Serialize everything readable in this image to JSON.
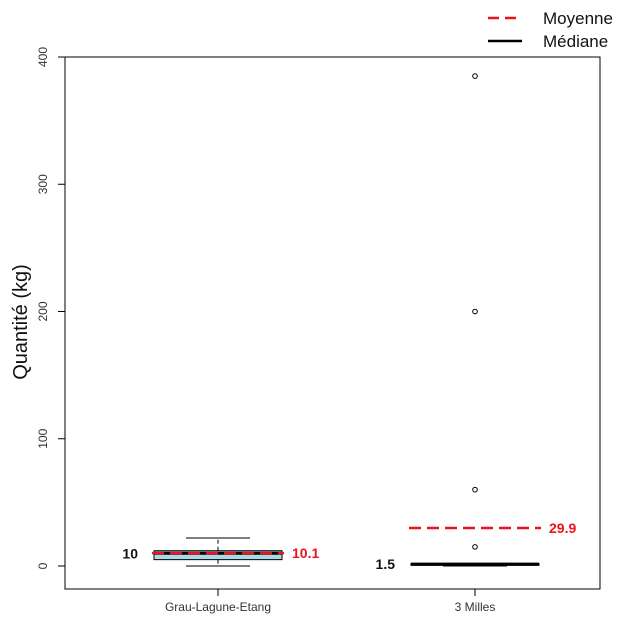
{
  "chart_data": {
    "type": "box",
    "ylabel": "Quantité (kg)",
    "ylim": [
      0,
      400
    ],
    "yticks": [
      0,
      100,
      200,
      300,
      400
    ],
    "categories": [
      "Grau-Lagune-Etang",
      "3 Milles"
    ],
    "boxes": [
      {
        "category": "Grau-Lagune-Etang",
        "min": 0,
        "q1": 5,
        "median": 10,
        "q3": 12,
        "max": 22,
        "mean": 10.1,
        "outliers": [],
        "median_label": "10",
        "mean_label": "10.1"
      },
      {
        "category": "3 Milles",
        "min": 0,
        "q1": 0.5,
        "median": 1.5,
        "q3": 2,
        "max": 2,
        "mean": 29.9,
        "outliers": [
          15,
          60,
          200,
          385
        ],
        "median_label": "1.5",
        "mean_label": "29.9"
      }
    ],
    "legend": {
      "position": "top-right",
      "items": [
        {
          "label": "Moyenne",
          "style": "dashed",
          "color": "#e8141c"
        },
        {
          "label": "Médiane",
          "style": "solid",
          "color": "#000000"
        }
      ]
    },
    "colors": {
      "box_fill": "#add8e6",
      "mean_line": "#e8141c",
      "median_line": "#000000"
    }
  }
}
